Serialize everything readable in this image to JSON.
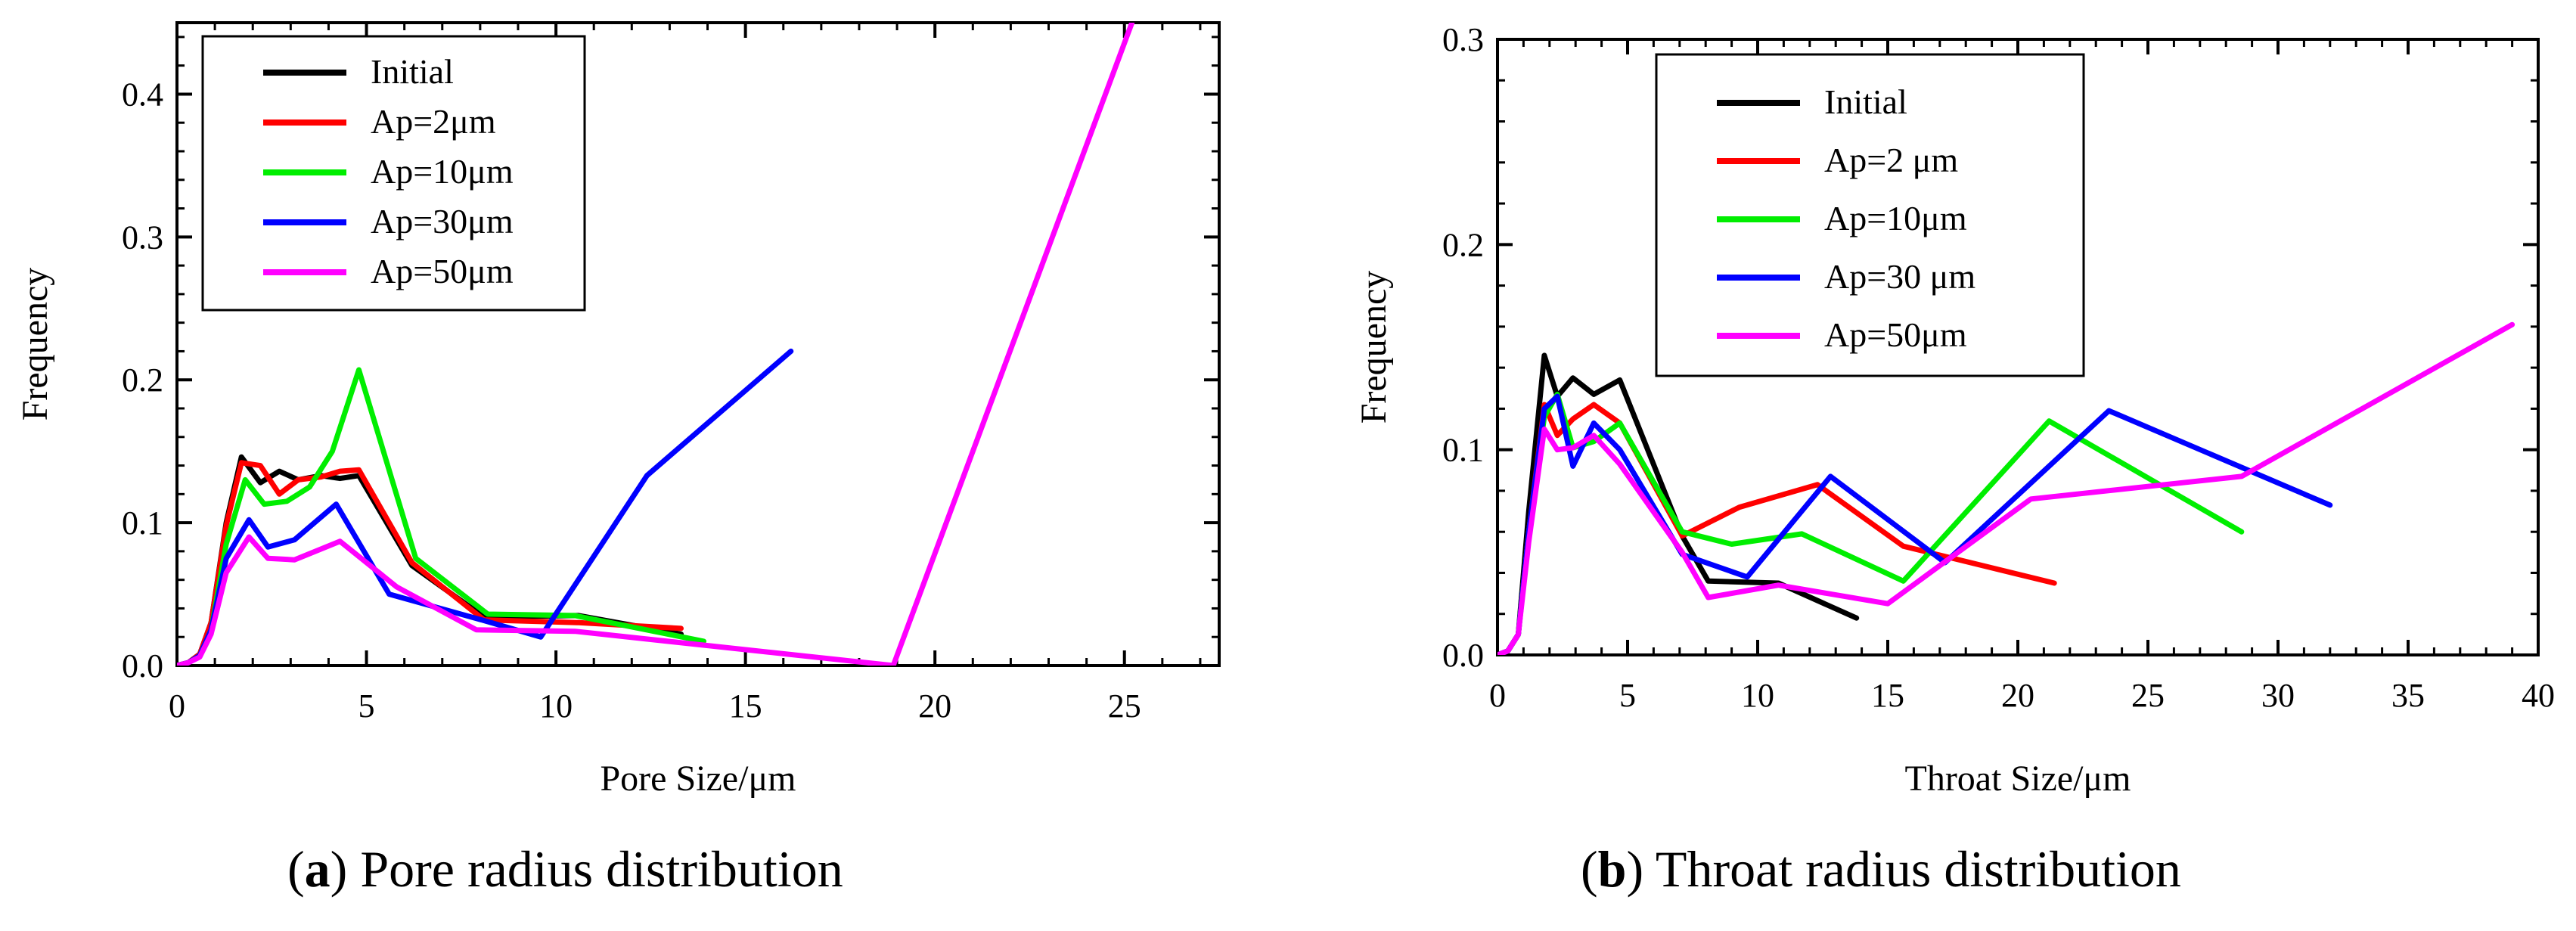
{
  "chart_data": [
    {
      "type": "line",
      "panel": "a",
      "xlabel": "Pore Size/μm",
      "ylabel": "Frequency",
      "xlim": [
        0,
        27.5
      ],
      "ylim": [
        0,
        0.45
      ],
      "xticks": [
        0,
        5,
        10,
        15,
        20,
        25
      ],
      "yticks": [
        0.0,
        0.1,
        0.2,
        0.3,
        0.4
      ],
      "ytick_labels": [
        "0.0",
        "0.1",
        "0.2",
        "0.3",
        "0.4"
      ],
      "legend_position": "top-left",
      "series": [
        {
          "name": "Initial",
          "color": "#000000",
          "x": [
            0,
            0.3,
            0.6,
            0.9,
            1.3,
            1.7,
            2.2,
            2.7,
            3.2,
            3.8,
            4.3,
            4.8,
            6.2,
            8.1,
            10.6,
            13.3
          ],
          "y": [
            0,
            0.002,
            0.008,
            0.03,
            0.1,
            0.146,
            0.128,
            0.136,
            0.13,
            0.133,
            0.131,
            0.133,
            0.07,
            0.034,
            0.035,
            0.022
          ]
        },
        {
          "name": "Ap=2μm",
          "color": "#ff0000",
          "x": [
            0,
            0.3,
            0.6,
            0.9,
            1.3,
            1.7,
            2.2,
            2.7,
            3.2,
            3.8,
            4.3,
            4.8,
            6.2,
            8.1,
            10.6,
            13.3
          ],
          "y": [
            0,
            0.002,
            0.008,
            0.03,
            0.098,
            0.142,
            0.14,
            0.12,
            0.13,
            0.132,
            0.136,
            0.137,
            0.072,
            0.032,
            0.03,
            0.026
          ]
        },
        {
          "name": "Ap=10μm",
          "color": "#00ee00",
          "x": [
            0,
            0.3,
            0.6,
            0.9,
            1.3,
            1.8,
            2.3,
            2.9,
            3.5,
            4.1,
            4.8,
            6.3,
            8.2,
            10.5,
            13.9
          ],
          "y": [
            0,
            0.002,
            0.007,
            0.025,
            0.085,
            0.13,
            0.113,
            0.115,
            0.125,
            0.15,
            0.207,
            0.075,
            0.036,
            0.035,
            0.017
          ]
        },
        {
          "name": "Ap=30μm",
          "color": "#0000ff",
          "x": [
            0,
            0.3,
            0.6,
            0.9,
            1.3,
            1.9,
            2.4,
            3.1,
            4.2,
            5.6,
            7.9,
            9.6,
            12.4,
            16.2
          ],
          "y": [
            0,
            0.002,
            0.007,
            0.025,
            0.075,
            0.102,
            0.083,
            0.088,
            0.113,
            0.05,
            0.033,
            0.02,
            0.133,
            0.22
          ]
        },
        {
          "name": "Ap=50μm",
          "color": "#ff00ff",
          "x": [
            0,
            0.3,
            0.6,
            0.9,
            1.3,
            1.9,
            2.4,
            3.1,
            4.3,
            5.8,
            7.9,
            10.5,
            18.9,
            25.2
          ],
          "y": [
            0,
            0.002,
            0.006,
            0.022,
            0.065,
            0.09,
            0.075,
            0.074,
            0.087,
            0.055,
            0.025,
            0.024,
            0.0,
            0.45
          ]
        }
      ]
    },
    {
      "type": "line",
      "panel": "b",
      "xlabel": "Throat Size/μm",
      "ylabel": "Frequency",
      "xlim": [
        0,
        40
      ],
      "ylim": [
        0,
        0.3
      ],
      "xticks": [
        0,
        5,
        10,
        15,
        20,
        25,
        30,
        35,
        40
      ],
      "yticks": [
        0.0,
        0.1,
        0.2,
        0.3
      ],
      "ytick_labels": [
        "0.0",
        "0.1",
        "0.2",
        "0.3"
      ],
      "legend_position": "top-center",
      "series": [
        {
          "name": "Initial",
          "color": "#000000",
          "x": [
            0,
            0.4,
            0.8,
            1.2,
            1.8,
            2.3,
            2.9,
            3.7,
            4.7,
            7.1,
            8.1,
            10.8,
            13.8
          ],
          "y": [
            0,
            0.002,
            0.01,
            0.07,
            0.146,
            0.126,
            0.135,
            0.127,
            0.134,
            0.058,
            0.036,
            0.035,
            0.018
          ]
        },
        {
          "name": "Ap=2 μm",
          "color": "#ff0000",
          "x": [
            0,
            0.4,
            0.8,
            1.2,
            1.8,
            2.3,
            2.9,
            3.7,
            4.7,
            7.1,
            9.3,
            12.3,
            15.6,
            21.4
          ],
          "y": [
            0,
            0.002,
            0.01,
            0.06,
            0.122,
            0.107,
            0.115,
            0.122,
            0.113,
            0.058,
            0.072,
            0.083,
            0.053,
            0.035
          ]
        },
        {
          "name": "Ap=10μm",
          "color": "#00ee00",
          "x": [
            0,
            0.4,
            0.8,
            1.2,
            1.8,
            2.3,
            2.9,
            3.7,
            4.7,
            7.1,
            9.0,
            11.7,
            15.6,
            21.2,
            28.6
          ],
          "y": [
            0,
            0.002,
            0.01,
            0.06,
            0.116,
            0.127,
            0.101,
            0.104,
            0.113,
            0.06,
            0.054,
            0.059,
            0.036,
            0.114,
            0.06
          ]
        },
        {
          "name": "Ap=30 μm",
          "color": "#0000ff",
          "x": [
            0,
            0.4,
            0.8,
            1.2,
            1.8,
            2.3,
            2.9,
            3.7,
            4.7,
            7.1,
            9.6,
            12.8,
            17.2,
            23.5,
            32.0
          ],
          "y": [
            0,
            0.002,
            0.01,
            0.06,
            0.12,
            0.126,
            0.092,
            0.113,
            0.1,
            0.049,
            0.038,
            0.087,
            0.045,
            0.119,
            0.073
          ]
        },
        {
          "name": "Ap=50μm",
          "color": "#ff00ff",
          "x": [
            0,
            0.4,
            0.8,
            1.2,
            1.8,
            2.3,
            2.9,
            3.7,
            4.7,
            7.1,
            8.1,
            10.8,
            15.0,
            20.5,
            28.6,
            39.0
          ],
          "y": [
            0,
            0.002,
            0.01,
            0.055,
            0.11,
            0.1,
            0.101,
            0.107,
            0.093,
            0.05,
            0.028,
            0.034,
            0.025,
            0.076,
            0.087,
            0.161
          ]
        }
      ]
    }
  ],
  "captions": [
    {
      "letter": "a",
      "text": "Pore radius distribution"
    },
    {
      "letter": "b",
      "text": "Throat radius distribution"
    }
  ]
}
